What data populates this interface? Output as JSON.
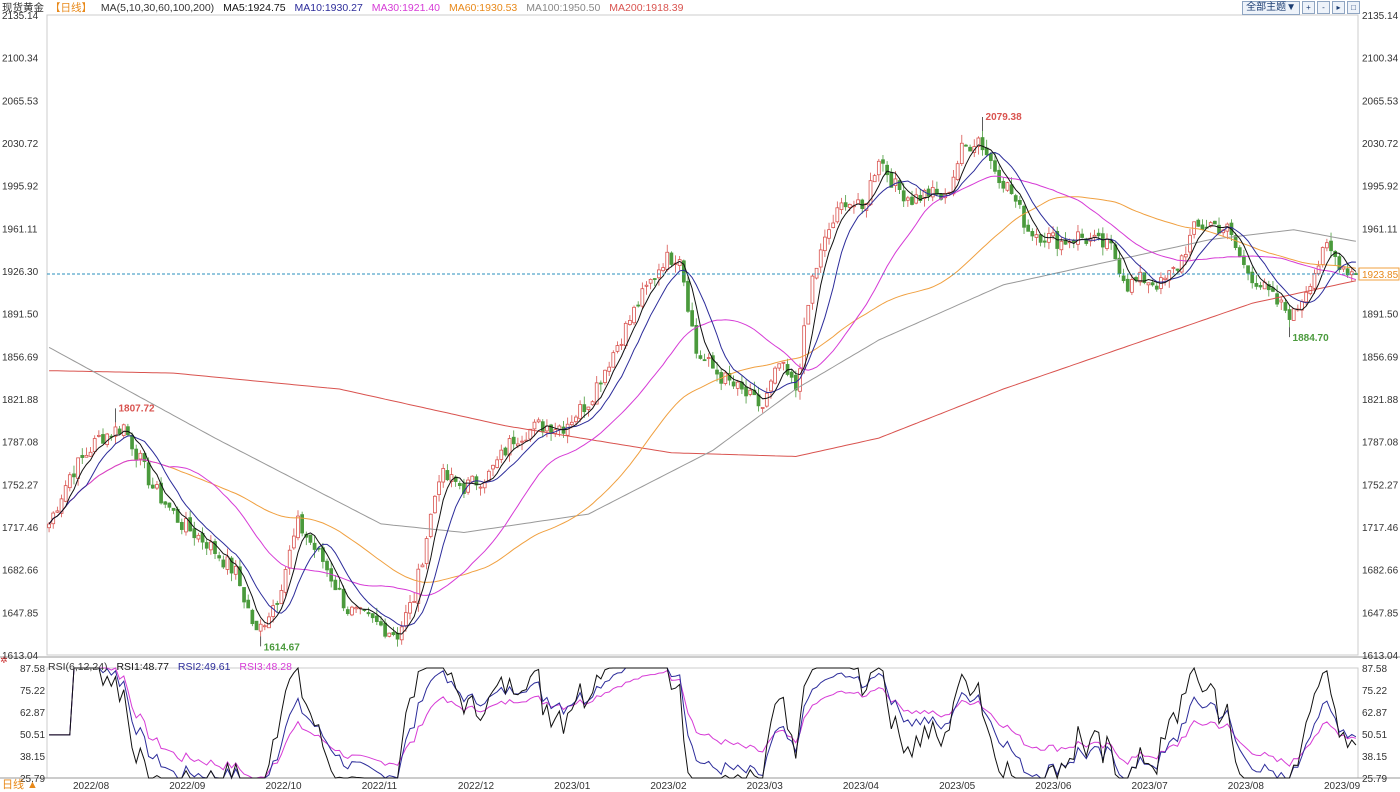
{
  "legend": {
    "title": "现货黄金",
    "period": "【日线】",
    "ma_params": "MA(5,10,30,60,100,200)",
    "ma5": "MA5:1924.75",
    "ma10": "MA10:1930.27",
    "ma30": "MA30:1921.40",
    "ma60": "MA60:1930.53",
    "ma100": "MA100:1950.50",
    "ma200": "MA200:1918.39"
  },
  "rsi_legend": {
    "params": "RSI(6,12,24)",
    "rsi1": "RSI1:48.77",
    "rsi2": "RSI2:49.61",
    "rsi3": "RSI3:48.28"
  },
  "toolbar": {
    "select_label": "全部主题▼",
    "btn1": "+",
    "btn2": "-",
    "btn3": "▸",
    "btn4": "□"
  },
  "footer": {
    "period_label": "日线 ▲"
  },
  "colors": {
    "up": "#d9534f",
    "down": "#4a9a3c",
    "ma5": "#111111",
    "ma10": "#2c2c9a",
    "ma30": "#d63bd6",
    "ma60": "#f0a040",
    "ma100": "#999999",
    "ma200": "#d9534f",
    "rsi1": "#111111",
    "rsi2": "#2c2c9a",
    "rsi3": "#d63bd6",
    "last_price_line": "#2a8fbd",
    "last_price_box": "#f0a040"
  },
  "chart_data": {
    "type": "line",
    "title": "现货黄金【日线】",
    "price_axis": {
      "ticks": [
        2135.14,
        2100.34,
        2065.53,
        2030.72,
        1995.92,
        1961.11,
        1926.3,
        1891.5,
        1856.69,
        1821.88,
        1787.08,
        1752.27,
        1717.46,
        1682.66,
        1647.85,
        1613.04
      ],
      "ylim": [
        1613.04,
        2135.14
      ]
    },
    "rsi_axis": {
      "ticks": [
        87.58,
        75.22,
        62.87,
        50.51,
        38.15,
        25.79
      ],
      "ylim": [
        25.79,
        87.58
      ]
    },
    "time_axis": [
      "2022/08",
      "2022/09",
      "2022/10",
      "2022/11",
      "2022/12",
      "2023/01",
      "2023/02",
      "2023/03",
      "2023/04",
      "2023/05",
      "2023/06",
      "2023/07",
      "2023/08",
      "2023/09"
    ],
    "last_price": 1923.85,
    "annotations": [
      {
        "label": "1807.72",
        "kind": "high"
      },
      {
        "label": "1614.67",
        "kind": "low"
      },
      {
        "label": "2079.38",
        "kind": "high"
      },
      {
        "label": "1884.70",
        "kind": "low"
      }
    ],
    "close_anchors": [
      [
        0,
        1720
      ],
      [
        5,
        1760
      ],
      [
        12,
        1790
      ],
      [
        18,
        1800
      ],
      [
        25,
        1750
      ],
      [
        32,
        1720
      ],
      [
        38,
        1705
      ],
      [
        45,
        1680
      ],
      [
        50,
        1630
      ],
      [
        55,
        1660
      ],
      [
        60,
        1720
      ],
      [
        66,
        1690
      ],
      [
        72,
        1650
      ],
      [
        78,
        1640
      ],
      [
        84,
        1630
      ],
      [
        88,
        1660
      ],
      [
        94,
        1760
      ],
      [
        100,
        1750
      ],
      [
        106,
        1760
      ],
      [
        112,
        1790
      ],
      [
        118,
        1800
      ],
      [
        124,
        1800
      ],
      [
        130,
        1820
      ],
      [
        136,
        1860
      ],
      [
        142,
        1900
      ],
      [
        148,
        1935
      ],
      [
        152,
        1940
      ],
      [
        156,
        1860
      ],
      [
        162,
        1840
      ],
      [
        168,
        1825
      ],
      [
        172,
        1815
      ],
      [
        176,
        1850
      ],
      [
        180,
        1830
      ],
      [
        184,
        1920
      ],
      [
        188,
        1960
      ],
      [
        192,
        1985
      ],
      [
        196,
        1975
      ],
      [
        200,
        2020
      ],
      [
        204,
        1995
      ],
      [
        208,
        1985
      ],
      [
        212,
        1990
      ],
      [
        216,
        1985
      ],
      [
        220,
        2025
      ],
      [
        224,
        2035
      ],
      [
        228,
        2010
      ],
      [
        232,
        1990
      ],
      [
        236,
        1960
      ],
      [
        240,
        1955
      ],
      [
        244,
        1950
      ],
      [
        248,
        1955
      ],
      [
        252,
        1950
      ],
      [
        256,
        1945
      ],
      [
        260,
        1915
      ],
      [
        264,
        1920
      ],
      [
        268,
        1915
      ],
      [
        272,
        1930
      ],
      [
        276,
        1960
      ],
      [
        280,
        1965
      ],
      [
        284,
        1960
      ],
      [
        288,
        1930
      ],
      [
        292,
        1915
      ],
      [
        296,
        1900
      ],
      [
        300,
        1890
      ],
      [
        304,
        1920
      ],
      [
        308,
        1945
      ],
      [
        312,
        1930
      ],
      [
        315,
        1923.85
      ]
    ],
    "ma100_anchors": [
      [
        0,
        1864
      ],
      [
        40,
        1790
      ],
      [
        80,
        1720
      ],
      [
        100,
        1713
      ],
      [
        130,
        1728
      ],
      [
        160,
        1780
      ],
      [
        180,
        1830
      ],
      [
        200,
        1870
      ],
      [
        230,
        1915
      ],
      [
        250,
        1930
      ],
      [
        280,
        1952
      ],
      [
        300,
        1960
      ],
      [
        315,
        1950.5
      ]
    ],
    "ma200_anchors": [
      [
        0,
        1845
      ],
      [
        30,
        1843
      ],
      [
        70,
        1830
      ],
      [
        110,
        1800
      ],
      [
        150,
        1778
      ],
      [
        180,
        1775
      ],
      [
        200,
        1790
      ],
      [
        230,
        1830
      ],
      [
        260,
        1865
      ],
      [
        290,
        1900
      ],
      [
        315,
        1918.39
      ]
    ]
  }
}
